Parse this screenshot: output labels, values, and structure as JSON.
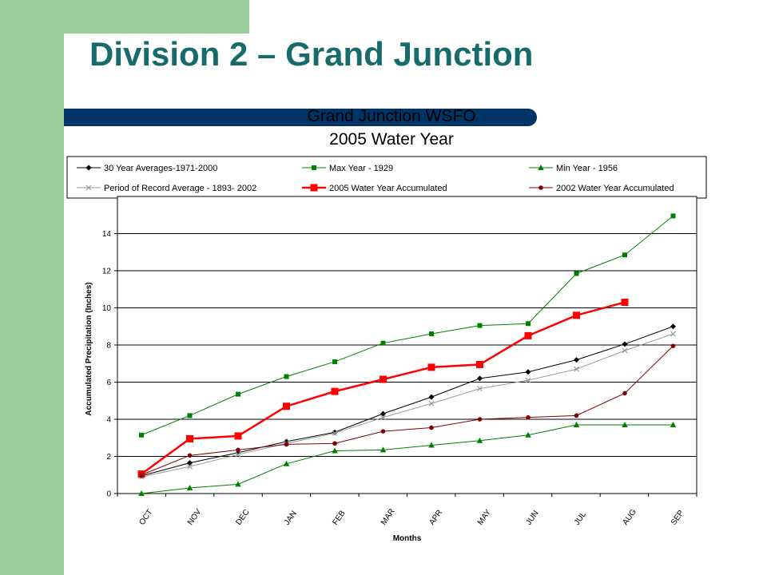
{
  "slide": {
    "title": "Division 2 – Grand Junction"
  },
  "chart_data": {
    "type": "line",
    "title": "Grand Junction WSFO",
    "subtitle": "2005 Water Year",
    "xlabel": "Months",
    "ylabel": "Accumulated Precipitation (Inches)",
    "ylim": [
      0,
      16
    ],
    "yticks": [
      0,
      2,
      4,
      6,
      8,
      10,
      12,
      14
    ],
    "grid": true,
    "legend_position": "top",
    "categories": [
      "OCT",
      "NOV",
      "DEC",
      "JAN",
      "FEB",
      "MAR",
      "APR",
      "MAY",
      "JUN",
      "JUL",
      "AUG",
      "SEP"
    ],
    "series": [
      {
        "name": "30 Year Averages-1971-2000",
        "color": "#000000",
        "marker": "diamond",
        "values": [
          0.95,
          1.65,
          2.2,
          2.8,
          3.3,
          4.3,
          5.2,
          6.2,
          6.55,
          7.2,
          8.05,
          9.0
        ]
      },
      {
        "name": "Max Year - 1929",
        "color": "#008000",
        "marker": "square",
        "values": [
          3.15,
          4.2,
          5.35,
          6.3,
          7.1,
          8.1,
          8.6,
          9.05,
          9.15,
          11.85,
          12.85,
          14.95
        ]
      },
      {
        "name": "Min Year - 1956",
        "color": "#008000",
        "marker": "triangle",
        "values": [
          0.0,
          0.3,
          0.5,
          1.6,
          2.3,
          2.35,
          2.6,
          2.85,
          3.15,
          3.7,
          3.7,
          3.7
        ]
      },
      {
        "name": "Period of Record Average - 1893- 2002",
        "color": "#999999",
        "marker": "x",
        "values": [
          0.9,
          1.45,
          2.1,
          2.7,
          3.25,
          4.1,
          4.85,
          5.65,
          6.1,
          6.7,
          7.7,
          8.6
        ]
      },
      {
        "name": "2005 Water Year Accumulated",
        "color": "#ff0000",
        "marker": "square-large",
        "values": [
          1.05,
          2.95,
          3.1,
          4.7,
          5.5,
          6.15,
          6.8,
          6.95,
          8.5,
          9.6,
          10.3,
          null
        ]
      },
      {
        "name": "2002 Water Year Accumulated",
        "color": "#800000",
        "marker": "circle",
        "values": [
          1.0,
          2.05,
          2.35,
          2.65,
          2.7,
          3.35,
          3.55,
          4.0,
          4.1,
          4.2,
          5.4,
          7.95
        ]
      }
    ]
  }
}
